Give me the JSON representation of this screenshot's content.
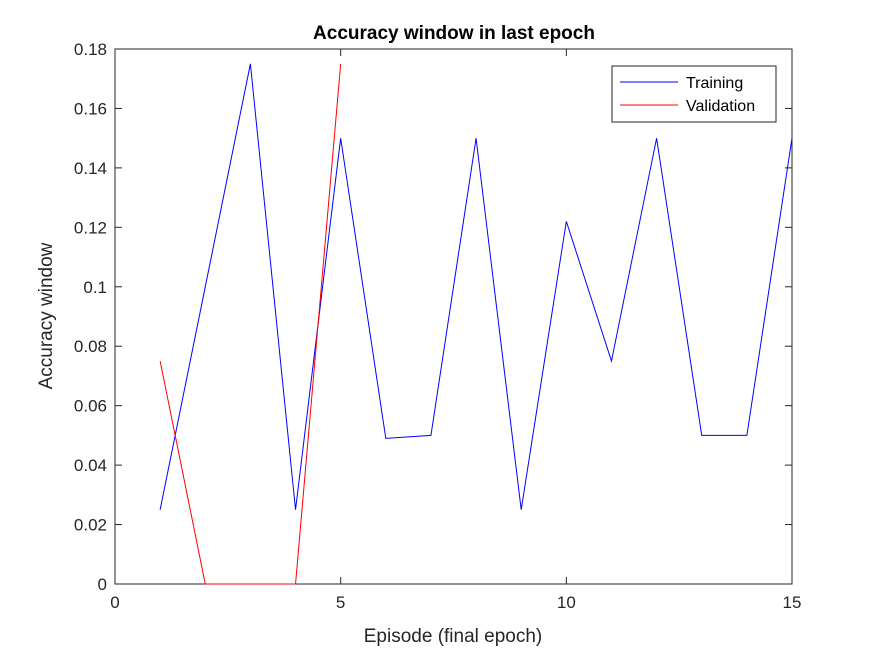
{
  "chart_data": {
    "type": "line",
    "title": "Accuracy window in last epoch",
    "xlabel": "Episode (final epoch)",
    "ylabel": "Accuracy window",
    "xlim": [
      0,
      15
    ],
    "ylim": [
      0,
      0.18
    ],
    "xticks": [
      0,
      5,
      10,
      15
    ],
    "xtick_labels": [
      "0",
      "5",
      "10",
      "15"
    ],
    "yticks": [
      0,
      0.02,
      0.04,
      0.06,
      0.08,
      0.1,
      0.12,
      0.14,
      0.16,
      0.18
    ],
    "ytick_labels": [
      "0",
      "0.02",
      "0.04",
      "0.06",
      "0.08",
      "0.1",
      "0.12",
      "0.14",
      "0.16",
      "0.18"
    ],
    "grid": false,
    "legend_position": "top-right",
    "series": [
      {
        "name": "Training",
        "color": "#0000ff",
        "x": [
          1,
          2,
          3,
          4,
          5,
          6,
          7,
          8,
          9,
          10,
          11,
          12,
          13,
          14,
          15
        ],
        "y": [
          0.025,
          0.1,
          0.175,
          0.025,
          0.15,
          0.049,
          0.05,
          0.15,
          0.025,
          0.122,
          0.075,
          0.15,
          0.05,
          0.05,
          0.15
        ]
      },
      {
        "name": "Validation",
        "color": "#ff0000",
        "x": [
          1,
          2,
          3,
          4,
          5
        ],
        "y": [
          0.075,
          0,
          0,
          0,
          0.175
        ]
      }
    ]
  }
}
